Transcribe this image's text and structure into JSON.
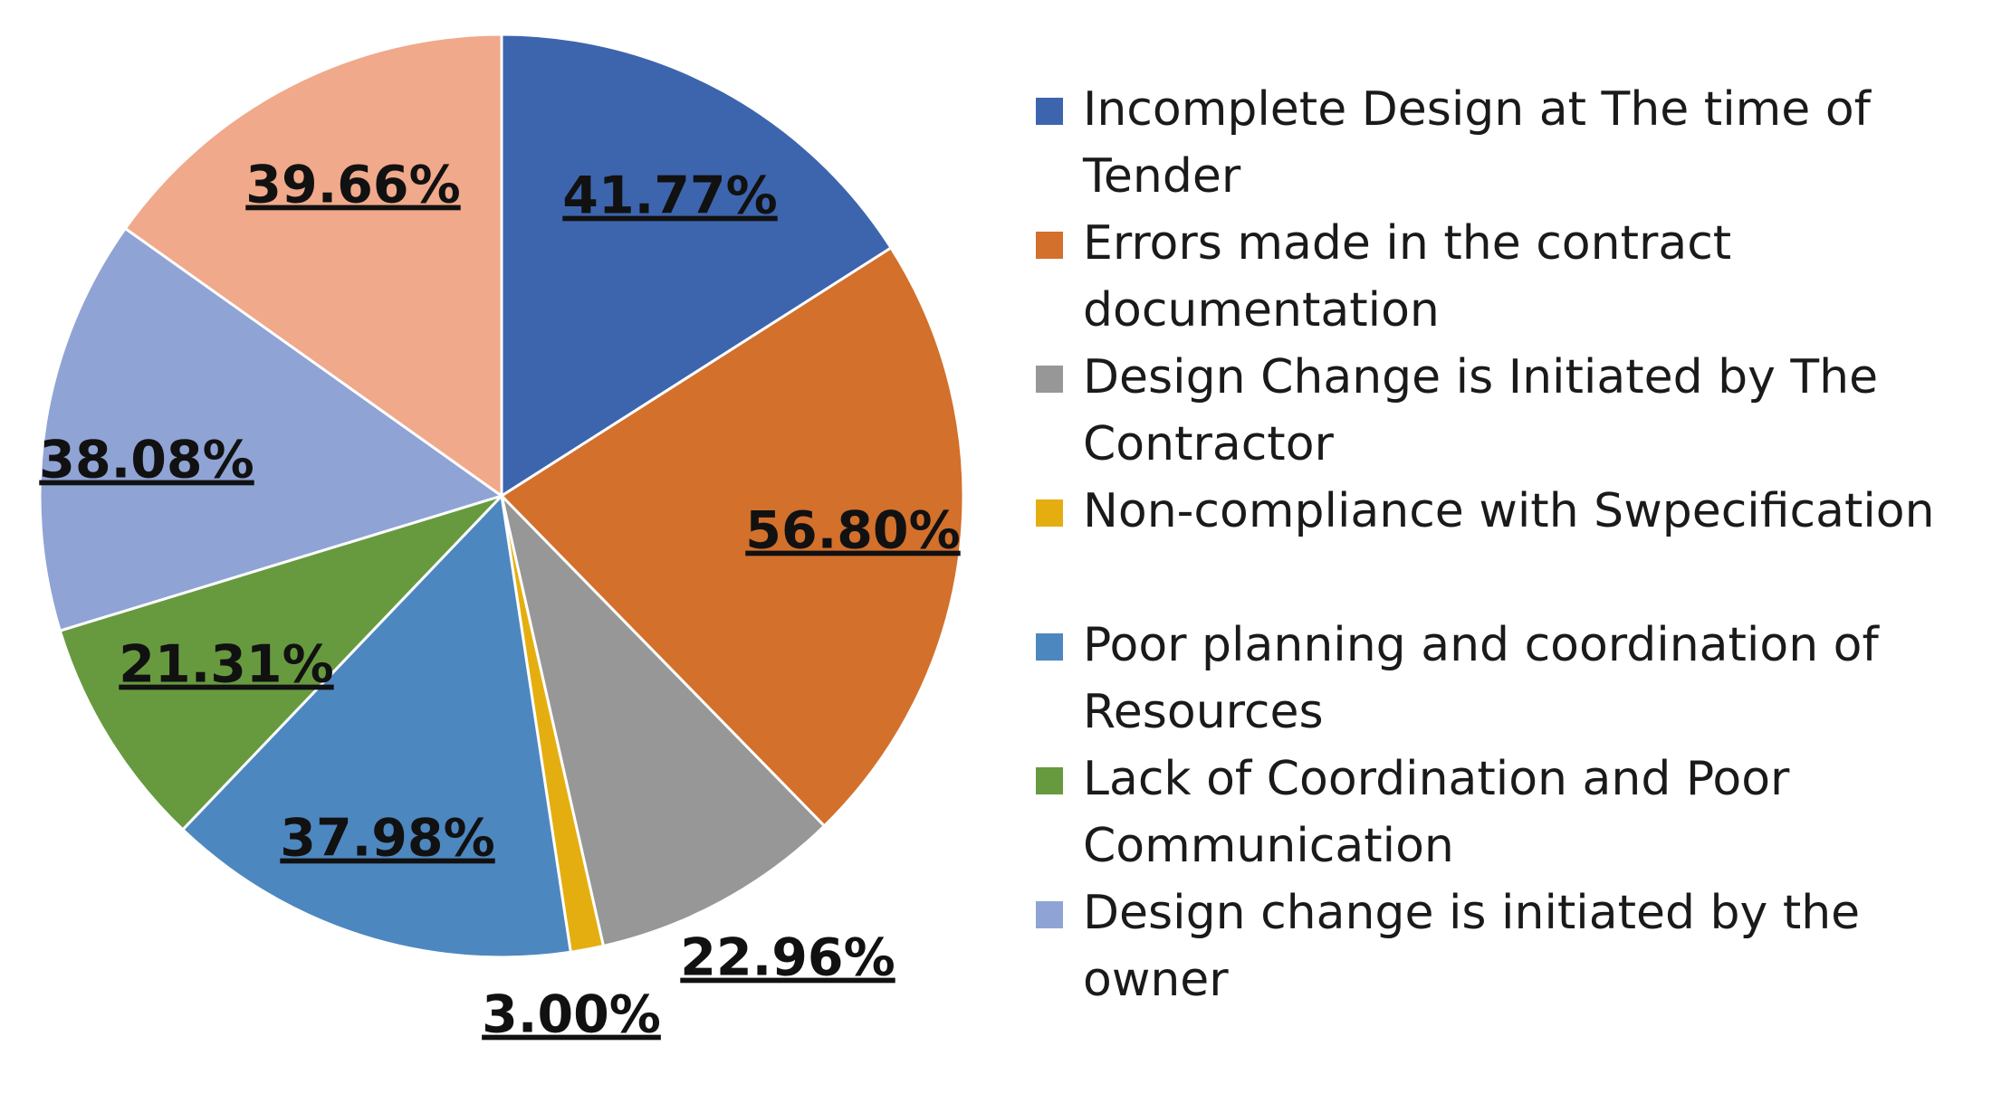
{
  "chart_data": {
    "type": "pie",
    "title": "",
    "legend_position": "right",
    "slices": [
      {
        "name": "Incomplete Design at The time of Tender",
        "value": 41.77,
        "label": "41.77%",
        "color": "#3d65ae"
      },
      {
        "name": "Errors made in the contract documentation",
        "value": 56.8,
        "label": "56.80%",
        "color": "#d2702c"
      },
      {
        "name": "Design Change is Initiated by The Contractor",
        "value": 22.96,
        "label": "22.96%",
        "color": "#979797"
      },
      {
        "name": "Non-compliance with Swpecification",
        "value": 3.0,
        "label": "3.00%",
        "color": "#e5ae10"
      },
      {
        "name": "Poor planning and coordination of Resources",
        "value": 37.98,
        "label": "37.98%",
        "color": "#4d87bf"
      },
      {
        "name": "Lack of Coordination and Poor Communication",
        "value": 21.31,
        "label": "21.31%",
        "color": "#679a3f"
      },
      {
        "name": "Design change is initiated by the owner",
        "value": 38.08,
        "label": "38.08%",
        "color": "#8fa3d5"
      },
      {
        "name": "",
        "value": 39.66,
        "label": "39.66%",
        "color": "#f0a98a"
      }
    ]
  },
  "legend": {
    "items": [
      {
        "label": "Incomplete Design at The time of Tender",
        "color": "#3d65ae"
      },
      {
        "label": "Errors made in the contract documentation",
        "color": "#d2702c"
      },
      {
        "label": "Design Change is Initiated by The Contractor",
        "color": "#979797"
      },
      {
        "label": "Non-compliance with Swpecification",
        "color": "#e5ae10"
      },
      {
        "label": "Poor planning and coordination of Resources",
        "color": "#4d87bf"
      },
      {
        "label": "Lack of Coordination and Poor Communication",
        "color": "#679a3f"
      },
      {
        "label": "Design change is initiated by the owner",
        "color": "#8fa3d5"
      }
    ]
  }
}
